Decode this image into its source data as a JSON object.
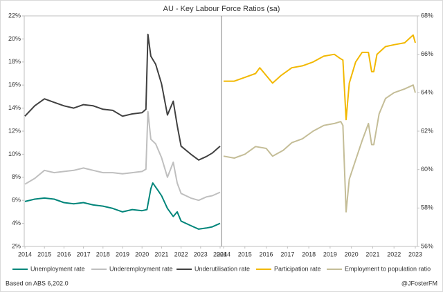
{
  "chart_data": [
    {
      "type": "line",
      "title": "AU - Key Labour Force Ratios (sa)",
      "xlim": [
        2014,
        2024
      ],
      "xticks": [
        2014,
        2015,
        2016,
        2017,
        2018,
        2019,
        2020,
        2021,
        2022,
        2023,
        2024
      ],
      "ylim": [
        2,
        22
      ],
      "yticks": [
        {
          "value": 2,
          "label": "2%"
        },
        {
          "value": 4,
          "label": "4%"
        },
        {
          "value": 6,
          "label": "6%"
        },
        {
          "value": 8,
          "label": "8%"
        },
        {
          "value": 10,
          "label": "10%"
        },
        {
          "value": 12,
          "label": "12%"
        },
        {
          "value": 14,
          "label": "14%"
        },
        {
          "value": 16,
          "label": "16%"
        },
        {
          "value": 18,
          "label": "18%"
        },
        {
          "value": 20,
          "label": "20%"
        },
        {
          "value": 22,
          "label": "22%"
        }
      ],
      "grid": false,
      "series": [
        {
          "name": "Unemployment rate",
          "color": "#00857a",
          "x": [
            2014,
            2014.5,
            2015,
            2015.5,
            2016,
            2016.5,
            2017,
            2017.5,
            2018,
            2018.5,
            2019,
            2019.5,
            2020,
            2020.25,
            2020.45,
            2020.55,
            2020.8,
            2021,
            2021.3,
            2021.6,
            2021.8,
            2022,
            2022.5,
            2022.9,
            2023.3,
            2023.6,
            2024
          ],
          "values": [
            5.9,
            6.1,
            6.2,
            6.1,
            5.8,
            5.7,
            5.8,
            5.6,
            5.5,
            5.3,
            5.0,
            5.2,
            5.1,
            5.2,
            7.0,
            7.5,
            6.9,
            6.4,
            5.3,
            4.6,
            5.0,
            4.2,
            3.8,
            3.5,
            3.6,
            3.7,
            4.0
          ]
        },
        {
          "name": "Underemployment rate",
          "color": "#bfbfbf",
          "x": [
            2014,
            2014.5,
            2015,
            2015.5,
            2016,
            2016.5,
            2017,
            2017.5,
            2018,
            2018.5,
            2019,
            2019.5,
            2020,
            2020.2,
            2020.3,
            2020.45,
            2020.7,
            2021,
            2021.3,
            2021.6,
            2021.8,
            2022,
            2022.5,
            2022.9,
            2023.3,
            2023.6,
            2024
          ],
          "values": [
            7.4,
            7.9,
            8.6,
            8.4,
            8.5,
            8.6,
            8.8,
            8.6,
            8.4,
            8.4,
            8.3,
            8.4,
            8.5,
            8.7,
            13.7,
            11.3,
            10.9,
            9.7,
            8.0,
            9.3,
            7.5,
            6.6,
            6.2,
            6.0,
            6.3,
            6.4,
            6.7
          ]
        },
        {
          "name": "Underutilisation rate",
          "color": "#404040",
          "x": [
            2014,
            2014.5,
            2015,
            2015.5,
            2016,
            2016.5,
            2017,
            2017.5,
            2018,
            2018.5,
            2019,
            2019.5,
            2020,
            2020.2,
            2020.3,
            2020.45,
            2020.7,
            2021,
            2021.3,
            2021.6,
            2021.8,
            2022,
            2022.5,
            2022.9,
            2023.3,
            2023.6,
            2024
          ],
          "values": [
            13.3,
            14.2,
            14.8,
            14.5,
            14.2,
            14.0,
            14.3,
            14.2,
            13.9,
            13.8,
            13.3,
            13.5,
            13.6,
            13.9,
            20.4,
            18.5,
            17.8,
            16.1,
            13.4,
            14.6,
            12.5,
            10.7,
            10.0,
            9.5,
            9.8,
            10.1,
            10.7
          ]
        }
      ]
    },
    {
      "type": "line",
      "xlim": [
        2014,
        2023
      ],
      "xticks": [
        2014,
        2015,
        2016,
        2017,
        2018,
        2019,
        2020,
        2021,
        2022,
        2023
      ],
      "ylim": [
        56,
        68
      ],
      "yticks": [
        {
          "value": 56,
          "label": "56%"
        },
        {
          "value": 58,
          "label": "58%"
        },
        {
          "value": 60,
          "label": "60%"
        },
        {
          "value": 62,
          "label": "62%"
        },
        {
          "value": 64,
          "label": "64%"
        },
        {
          "value": 66,
          "label": "66%"
        },
        {
          "value": 68,
          "label": "68%"
        }
      ],
      "grid": false,
      "series": [
        {
          "name": "Participation rate",
          "color": "#f2b800",
          "x": [
            2014,
            2014.5,
            2015,
            2015.5,
            2015.7,
            2016.3,
            2016.7,
            2017.2,
            2017.7,
            2018.2,
            2018.7,
            2019.2,
            2019.45,
            2019.6,
            2019.75,
            2019.9,
            2020.2,
            2020.5,
            2020.8,
            2020.95,
            2021.05,
            2021.2,
            2021.6,
            2022,
            2022.5,
            2022.9,
            2023
          ],
          "values": [
            64.6,
            64.6,
            64.8,
            65.0,
            65.3,
            64.5,
            64.9,
            65.3,
            65.4,
            65.6,
            65.9,
            66.0,
            65.8,
            65.7,
            62.6,
            64.5,
            65.6,
            66.1,
            66.1,
            65.1,
            65.1,
            66.0,
            66.4,
            66.5,
            66.6,
            67.0,
            66.6
          ]
        },
        {
          "name": "Employment to population ratio",
          "color": "#c4bd97",
          "x": [
            2014,
            2014.5,
            2015,
            2015.5,
            2016,
            2016.3,
            2016.8,
            2017.2,
            2017.7,
            2018.2,
            2018.7,
            2019.2,
            2019.5,
            2019.6,
            2019.75,
            2019.9,
            2020.2,
            2020.5,
            2020.8,
            2020.95,
            2021.05,
            2021.3,
            2021.6,
            2022,
            2022.5,
            2022.9,
            2023
          ],
          "values": [
            60.7,
            60.6,
            60.8,
            61.2,
            61.1,
            60.7,
            61.0,
            61.4,
            61.6,
            62.0,
            62.3,
            62.4,
            62.5,
            62.3,
            57.8,
            59.5,
            60.5,
            61.5,
            62.4,
            61.3,
            61.3,
            62.9,
            63.7,
            64.0,
            64.2,
            64.4,
            64.0
          ]
        }
      ]
    }
  ],
  "footer": {
    "source": "Based on ABS 6,202.0",
    "credit": "@JFosterFM"
  }
}
